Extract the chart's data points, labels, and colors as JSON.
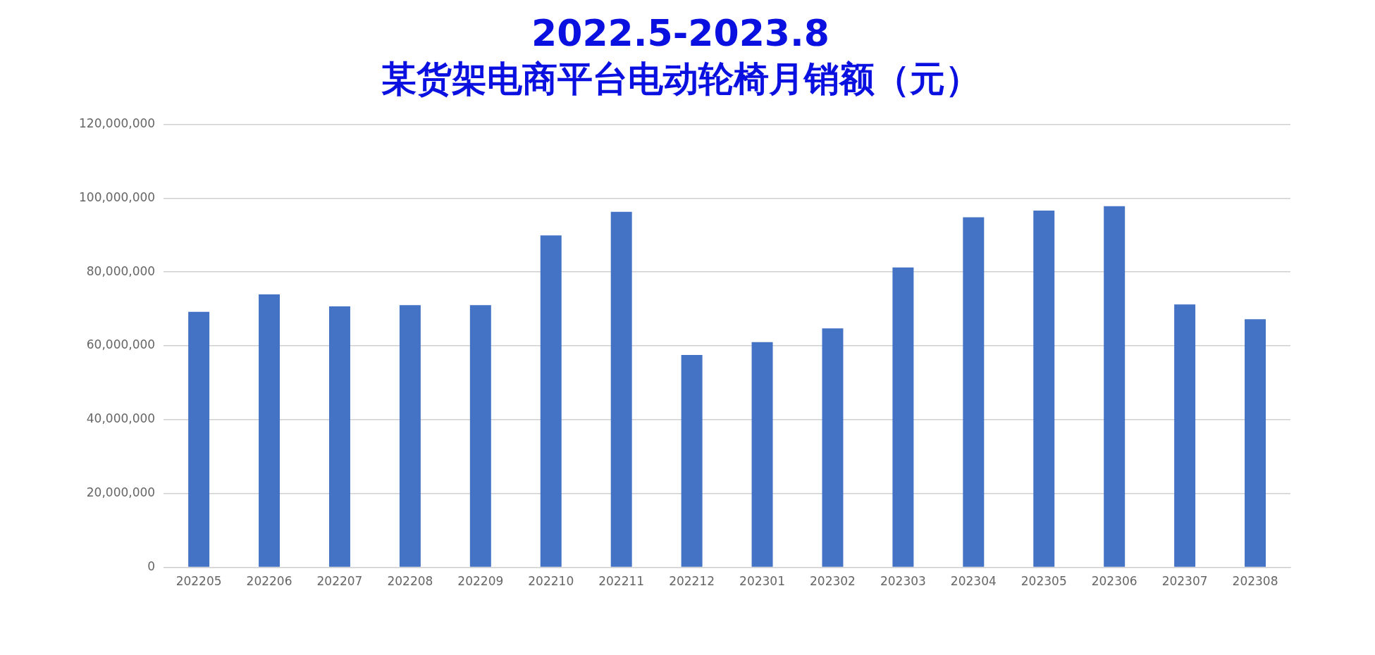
{
  "chart_data": {
    "type": "bar",
    "title": "2022.5-2023.8",
    "subtitle": "某货架电商平台电动轮椅月销额（元）",
    "categories": [
      "202205",
      "202206",
      "202207",
      "202208",
      "202209",
      "202210",
      "202211",
      "202212",
      "202301",
      "202302",
      "202303",
      "202304",
      "202305",
      "202306",
      "202307",
      "202308"
    ],
    "values": [
      69200000,
      73900000,
      70700000,
      71000000,
      71000000,
      89900000,
      96300000,
      57500000,
      61000000,
      64700000,
      81200000,
      94800000,
      96600000,
      97800000,
      71200000,
      67200000
    ],
    "color": "#4472c4",
    "ylim": [
      0,
      120000000
    ],
    "yticks": [
      {
        "value": 0,
        "label": "0"
      },
      {
        "value": 20000000,
        "label": "20,000,000"
      },
      {
        "value": 40000000,
        "label": "40,000,000"
      },
      {
        "value": 60000000,
        "label": "60,000,000"
      },
      {
        "value": 80000000,
        "label": "80,000,000"
      },
      {
        "value": 100000000,
        "label": "100,000,000"
      },
      {
        "value": 120000000,
        "label": "120,000,000"
      }
    ],
    "grid": "y",
    "legend": false
  }
}
